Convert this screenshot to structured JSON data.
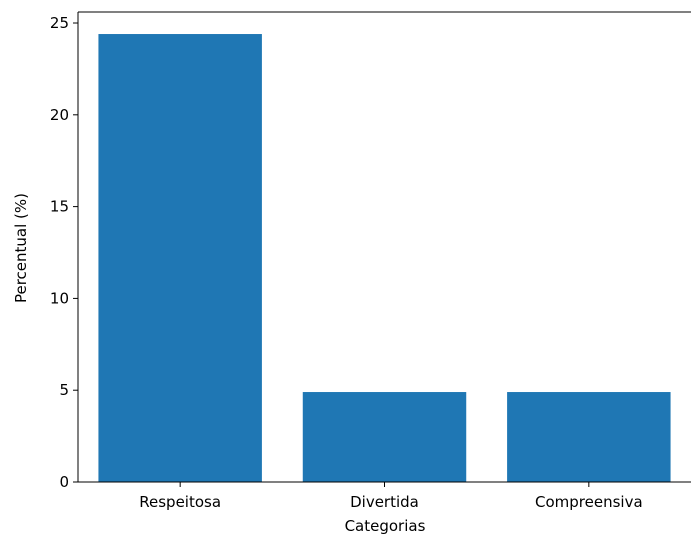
{
  "chart_data": {
    "type": "bar",
    "title": "",
    "xlabel": "Categorias",
    "ylabel": "Percentual (%)",
    "categories": [
      "Respeitosa",
      "Divertida",
      "Compreensiva"
    ],
    "values": [
      24.4,
      4.9,
      4.9
    ],
    "ylim": [
      0,
      25.6
    ],
    "yticks": [
      0,
      5,
      10,
      15,
      20,
      25
    ],
    "ytick_labels": [
      "0",
      "5",
      "10",
      "15",
      "20",
      "25"
    ],
    "grid": false,
    "legend": "none",
    "bar_color": "#1f77b4",
    "axis_color": "#000000"
  }
}
